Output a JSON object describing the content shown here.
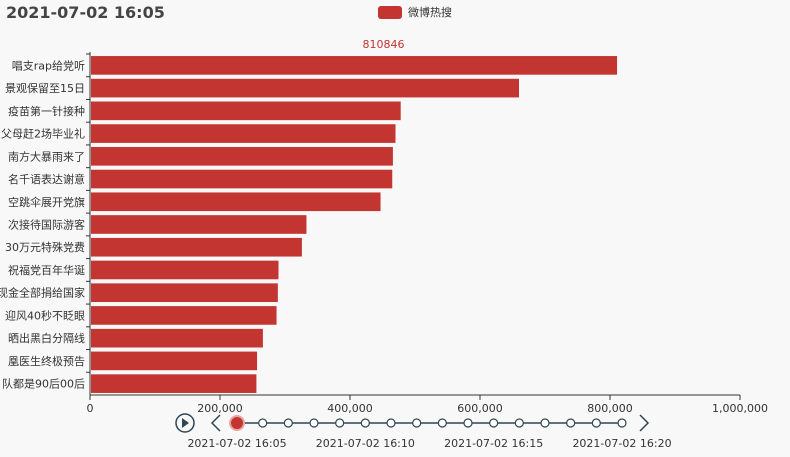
{
  "title": "2021-07-02 16:05",
  "legend": {
    "label": "微博热搜",
    "color": "#c23531"
  },
  "chart_data": {
    "type": "bar",
    "orientation": "horizontal",
    "categories": [
      "唱支rap给党听",
      "景观保留至15日",
      "疫苗第一针接种",
      "父母赶2场毕业礼",
      "南方大暴雨来了",
      "名千语表达谢意",
      "空跳伞展开党旗",
      "次接待国际游客",
      "30万元特殊党费",
      "祝福党百年华诞",
      "现金全部捐给国家",
      "迎风40秒不眨眼",
      "晒出黑白分隔线",
      "凰医生终极预告",
      "队都是90后00后"
    ],
    "series": [
      {
        "name": "微博热搜",
        "values": [
          810846,
          660000,
          478000,
          470000,
          466000,
          465000,
          447000,
          333000,
          326000,
          290000,
          289000,
          287000,
          266000,
          257000,
          256000
        ]
      }
    ],
    "max_label": "810846",
    "xlim": [
      0,
      1000000
    ],
    "xticks": [
      "0",
      "200,000",
      "400,000",
      "600,000",
      "800,000",
      "1,000,000"
    ],
    "color": "#c23531"
  },
  "timeline": {
    "labels": [
      "2021-07-02 16:05",
      "2021-07-02 16:10",
      "2021-07-02 16:15",
      "2021-07-02 16:20"
    ],
    "dot_count": 16,
    "current_index": 0
  }
}
